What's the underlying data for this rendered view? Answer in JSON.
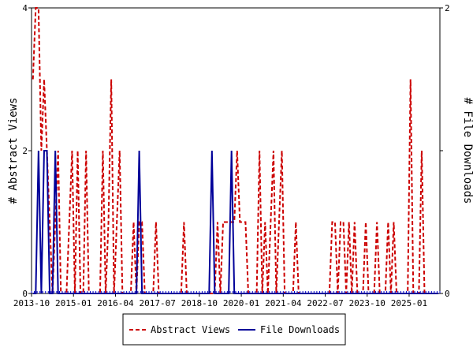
{
  "chart_data": {
    "type": "line",
    "title": "",
    "xlabel": "",
    "ylabel_left": "# Abstract Views",
    "ylabel_right": "# File Downloads",
    "x_tick_labels": [
      "2013-10",
      "2015-01",
      "2016-04",
      "2017-07",
      "2018-10",
      "2020-01",
      "2021-04",
      "2022-07",
      "2023-10",
      "2025-01"
    ],
    "x_range": [
      "2013-10",
      "2025-11"
    ],
    "y_left": {
      "range": [
        0,
        4
      ],
      "ticks": [
        "0",
        "2",
        "4"
      ]
    },
    "y_right": {
      "range": [
        0,
        2
      ],
      "ticks": [
        "0",
        "1",
        "2"
      ]
    },
    "grid": false,
    "legend_position": "bottom",
    "series": [
      {
        "name": "Abstract Views",
        "axis": "left",
        "color": "#cc0000",
        "dash": "dashed",
        "points": [
          [
            "2013-10",
            3
          ],
          [
            "2013-11",
            4
          ],
          [
            "2013-12",
            4
          ],
          [
            "2014-01",
            2
          ],
          [
            "2014-02",
            3
          ],
          [
            "2014-03",
            2
          ],
          [
            "2014-04",
            1
          ],
          [
            "2014-05",
            0
          ],
          [
            "2014-06",
            1
          ],
          [
            "2014-07",
            2
          ],
          [
            "2014-08",
            0
          ],
          [
            "2014-09",
            0
          ],
          [
            "2014-10",
            0
          ],
          [
            "2014-11",
            1
          ],
          [
            "2014-12",
            2
          ],
          [
            "2015-01",
            0
          ],
          [
            "2015-02",
            2
          ],
          [
            "2015-03",
            0
          ],
          [
            "2015-04",
            0
          ],
          [
            "2015-05",
            2
          ],
          [
            "2015-06",
            0
          ],
          [
            "2015-07",
            0
          ],
          [
            "2015-08",
            0
          ],
          [
            "2015-09",
            0
          ],
          [
            "2015-10",
            0
          ],
          [
            "2015-11",
            2
          ],
          [
            "2015-12",
            0
          ],
          [
            "2016-01",
            1
          ],
          [
            "2016-02",
            3
          ],
          [
            "2016-03",
            0
          ],
          [
            "2016-04",
            1
          ],
          [
            "2016-05",
            2
          ],
          [
            "2016-06",
            0
          ],
          [
            "2016-07",
            0
          ],
          [
            "2016-08",
            0
          ],
          [
            "2016-09",
            0
          ],
          [
            "2016-10",
            1
          ],
          [
            "2016-11",
            0
          ],
          [
            "2016-12",
            1
          ],
          [
            "2017-01",
            1
          ],
          [
            "2017-02",
            0
          ],
          [
            "2017-03",
            0
          ],
          [
            "2017-04",
            0
          ],
          [
            "2017-05",
            0
          ],
          [
            "2017-06",
            1
          ],
          [
            "2017-07",
            0
          ],
          [
            "2017-08",
            0
          ],
          [
            "2017-09",
            0
          ],
          [
            "2017-10",
            0
          ],
          [
            "2017-11",
            0
          ],
          [
            "2017-12",
            0
          ],
          [
            "2018-01",
            0
          ],
          [
            "2018-02",
            0
          ],
          [
            "2018-03",
            0
          ],
          [
            "2018-04",
            1
          ],
          [
            "2018-05",
            0
          ],
          [
            "2018-06",
            0
          ],
          [
            "2018-07",
            0
          ],
          [
            "2018-08",
            0
          ],
          [
            "2018-09",
            0
          ],
          [
            "2018-10",
            0
          ],
          [
            "2018-11",
            0
          ],
          [
            "2018-12",
            0
          ],
          [
            "2019-01",
            0
          ],
          [
            "2019-02",
            0
          ],
          [
            "2019-03",
            0
          ],
          [
            "2019-04",
            1
          ],
          [
            "2019-05",
            0
          ],
          [
            "2019-06",
            1
          ],
          [
            "2019-07",
            1
          ],
          [
            "2019-08",
            1
          ],
          [
            "2019-09",
            1
          ],
          [
            "2019-10",
            1
          ],
          [
            "2019-11",
            2
          ],
          [
            "2019-12",
            1
          ],
          [
            "2020-01",
            1
          ],
          [
            "2020-02",
            1
          ],
          [
            "2020-03",
            0
          ],
          [
            "2020-04",
            0
          ],
          [
            "2020-05",
            0
          ],
          [
            "2020-06",
            0
          ],
          [
            "2020-07",
            2
          ],
          [
            "2020-08",
            0
          ],
          [
            "2020-09",
            1
          ],
          [
            "2020-10",
            0
          ],
          [
            "2020-11",
            1
          ],
          [
            "2020-12",
            2
          ],
          [
            "2021-01",
            0
          ],
          [
            "2021-02",
            1
          ],
          [
            "2021-03",
            2
          ],
          [
            "2021-04",
            0
          ],
          [
            "2021-05",
            0
          ],
          [
            "2021-06",
            0
          ],
          [
            "2021-07",
            0
          ],
          [
            "2021-08",
            1
          ],
          [
            "2021-09",
            0
          ],
          [
            "2021-10",
            0
          ],
          [
            "2021-11",
            0
          ],
          [
            "2021-12",
            0
          ],
          [
            "2022-01",
            0
          ],
          [
            "2022-02",
            0
          ],
          [
            "2022-03",
            0
          ],
          [
            "2022-04",
            0
          ],
          [
            "2022-05",
            0
          ],
          [
            "2022-06",
            0
          ],
          [
            "2022-07",
            0
          ],
          [
            "2022-08",
            0
          ],
          [
            "2022-09",
            1
          ],
          [
            "2022-10",
            1
          ],
          [
            "2022-11",
            0
          ],
          [
            "2022-12",
            1
          ],
          [
            "2023-01",
            1
          ],
          [
            "2023-02",
            0
          ],
          [
            "2023-03",
            1
          ],
          [
            "2023-04",
            0
          ],
          [
            "2023-05",
            1
          ],
          [
            "2023-06",
            0
          ],
          [
            "2023-07",
            0
          ],
          [
            "2023-08",
            0
          ],
          [
            "2023-09",
            1
          ],
          [
            "2023-10",
            0
          ],
          [
            "2023-11",
            0
          ],
          [
            "2023-12",
            0
          ],
          [
            "2024-01",
            1
          ],
          [
            "2024-02",
            0
          ],
          [
            "2024-03",
            0
          ],
          [
            "2024-04",
            0
          ],
          [
            "2024-05",
            1
          ],
          [
            "2024-06",
            0
          ],
          [
            "2024-07",
            1
          ],
          [
            "2024-08",
            0
          ],
          [
            "2024-09",
            0
          ],
          [
            "2024-10",
            0
          ],
          [
            "2024-11",
            0
          ],
          [
            "2024-12",
            0
          ],
          [
            "2025-01",
            3
          ],
          [
            "2025-02",
            0
          ],
          [
            "2025-03",
            0
          ],
          [
            "2025-04",
            0
          ],
          [
            "2025-05",
            2
          ],
          [
            "2025-06",
            0
          ],
          [
            "2025-07",
            0
          ],
          [
            "2025-08",
            0
          ],
          [
            "2025-09",
            0
          ],
          [
            "2025-10",
            0
          ],
          [
            "2025-11",
            0
          ]
        ]
      },
      {
        "name": "File Downloads",
        "axis": "right",
        "color": "#000099",
        "dash": "solid",
        "points": [
          [
            "2013-10",
            0
          ],
          [
            "2013-11",
            0
          ],
          [
            "2013-12",
            1
          ],
          [
            "2014-01",
            0
          ],
          [
            "2014-02",
            1
          ],
          [
            "2014-03",
            1
          ],
          [
            "2014-04",
            0
          ],
          [
            "2014-05",
            0
          ],
          [
            "2014-06",
            1
          ],
          [
            "2014-07",
            0
          ],
          [
            "2014-08",
            0
          ],
          [
            "2014-09",
            0
          ],
          [
            "2014-10",
            0
          ],
          [
            "2014-11",
            0
          ],
          [
            "2014-12",
            0
          ],
          [
            "2015-01",
            0
          ],
          [
            "2015-02",
            0
          ],
          [
            "2015-03",
            0
          ],
          [
            "2015-04",
            0
          ],
          [
            "2015-05",
            0
          ],
          [
            "2015-06",
            0
          ],
          [
            "2015-07",
            0
          ],
          [
            "2015-08",
            0
          ],
          [
            "2015-09",
            0
          ],
          [
            "2015-10",
            0
          ],
          [
            "2015-11",
            0
          ],
          [
            "2015-12",
            0
          ],
          [
            "2016-01",
            0
          ],
          [
            "2016-02",
            0
          ],
          [
            "2016-03",
            0
          ],
          [
            "2016-04",
            0
          ],
          [
            "2016-05",
            0
          ],
          [
            "2016-06",
            0
          ],
          [
            "2016-07",
            0
          ],
          [
            "2016-08",
            0
          ],
          [
            "2016-09",
            0
          ],
          [
            "2016-10",
            0
          ],
          [
            "2016-11",
            0
          ],
          [
            "2016-12",
            1
          ],
          [
            "2017-01",
            0
          ],
          [
            "2017-02",
            0
          ],
          [
            "2017-03",
            0
          ],
          [
            "2017-04",
            0
          ],
          [
            "2017-05",
            0
          ],
          [
            "2017-06",
            0
          ],
          [
            "2017-07",
            0
          ],
          [
            "2017-08",
            0
          ],
          [
            "2017-09",
            0
          ],
          [
            "2017-10",
            0
          ],
          [
            "2017-11",
            0
          ],
          [
            "2017-12",
            0
          ],
          [
            "2018-01",
            0
          ],
          [
            "2018-02",
            0
          ],
          [
            "2018-03",
            0
          ],
          [
            "2018-04",
            0
          ],
          [
            "2018-05",
            0
          ],
          [
            "2018-06",
            0
          ],
          [
            "2018-07",
            0
          ],
          [
            "2018-08",
            0
          ],
          [
            "2018-09",
            0
          ],
          [
            "2018-10",
            0
          ],
          [
            "2018-11",
            0
          ],
          [
            "2018-12",
            0
          ],
          [
            "2019-01",
            0
          ],
          [
            "2019-02",
            1
          ],
          [
            "2019-03",
            0
          ],
          [
            "2019-04",
            0
          ],
          [
            "2019-05",
            0
          ],
          [
            "2019-06",
            0
          ],
          [
            "2019-07",
            0
          ],
          [
            "2019-08",
            0
          ],
          [
            "2019-09",
            1
          ],
          [
            "2019-10",
            0
          ],
          [
            "2019-11",
            0
          ],
          [
            "2019-12",
            0
          ],
          [
            "2020-01",
            0
          ],
          [
            "2020-02",
            0
          ],
          [
            "2020-03",
            0
          ],
          [
            "2020-04",
            0
          ],
          [
            "2020-05",
            0
          ],
          [
            "2020-06",
            0
          ],
          [
            "2020-07",
            0
          ],
          [
            "2020-08",
            0
          ],
          [
            "2020-09",
            0
          ],
          [
            "2020-10",
            0
          ],
          [
            "2020-11",
            0
          ],
          [
            "2020-12",
            0
          ],
          [
            "2021-01",
            0
          ],
          [
            "2021-02",
            0
          ],
          [
            "2021-03",
            0
          ],
          [
            "2021-04",
            0
          ],
          [
            "2021-05",
            0
          ],
          [
            "2021-06",
            0
          ],
          [
            "2021-07",
            0
          ],
          [
            "2021-08",
            0
          ],
          [
            "2021-09",
            0
          ],
          [
            "2021-10",
            0
          ],
          [
            "2021-11",
            0
          ],
          [
            "2021-12",
            0
          ],
          [
            "2022-01",
            0
          ],
          [
            "2022-02",
            0
          ],
          [
            "2022-03",
            0
          ],
          [
            "2022-04",
            0
          ],
          [
            "2022-05",
            0
          ],
          [
            "2022-06",
            0
          ],
          [
            "2022-07",
            0
          ],
          [
            "2022-08",
            0
          ],
          [
            "2022-09",
            0
          ],
          [
            "2022-10",
            0
          ],
          [
            "2022-11",
            0
          ],
          [
            "2022-12",
            0
          ],
          [
            "2023-01",
            0
          ],
          [
            "2023-02",
            0
          ],
          [
            "2023-03",
            0
          ],
          [
            "2023-04",
            0
          ],
          [
            "2023-05",
            0
          ],
          [
            "2023-06",
            0
          ],
          [
            "2023-07",
            0
          ],
          [
            "2023-08",
            0
          ],
          [
            "2023-09",
            0
          ],
          [
            "2023-10",
            0
          ],
          [
            "2023-11",
            0
          ],
          [
            "2023-12",
            0
          ],
          [
            "2024-01",
            0
          ],
          [
            "2024-02",
            0
          ],
          [
            "2024-03",
            0
          ],
          [
            "2024-04",
            0
          ],
          [
            "2024-05",
            0
          ],
          [
            "2024-06",
            0
          ],
          [
            "2024-07",
            0
          ],
          [
            "2024-08",
            0
          ],
          [
            "2024-09",
            0
          ],
          [
            "2024-10",
            0
          ],
          [
            "2024-11",
            0
          ],
          [
            "2024-12",
            0
          ],
          [
            "2025-01",
            0
          ],
          [
            "2025-02",
            0
          ],
          [
            "2025-03",
            0
          ],
          [
            "2025-04",
            0
          ],
          [
            "2025-05",
            0
          ],
          [
            "2025-06",
            0
          ],
          [
            "2025-07",
            0
          ],
          [
            "2025-08",
            0
          ],
          [
            "2025-09",
            0
          ],
          [
            "2025-10",
            0
          ],
          [
            "2025-11",
            0
          ]
        ]
      }
    ]
  }
}
